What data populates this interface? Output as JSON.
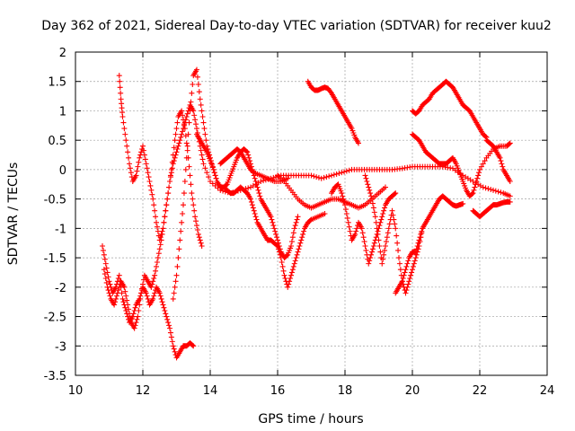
{
  "chart_data": {
    "type": "scatter",
    "title": "Day 362 of 2021, Sidereal Day-to-day VTEC variation (SDTVAR) for receiver kuu2",
    "xlabel": "GPS time / hours",
    "ylabel": "SDTVAR / TECUs",
    "xlim": [
      10,
      24
    ],
    "ylim": [
      -3.5,
      2
    ],
    "xticks": [
      10,
      12,
      14,
      16,
      18,
      20,
      22,
      24
    ],
    "yticks": [
      2,
      1.5,
      1,
      0.5,
      0,
      -0.5,
      -1,
      -1.5,
      -2,
      -2.5,
      -3,
      -3.5
    ],
    "xtick_labels": [
      "10",
      "12",
      "14",
      "16",
      "18",
      "20",
      "22",
      "24"
    ],
    "ytick_labels": [
      "2",
      "1.5",
      "1",
      "0.5",
      "0",
      "-0.5",
      "-1",
      "-1.5",
      "-2",
      "-2.5",
      "-3",
      "-3.5"
    ],
    "grid": true,
    "marker": "+",
    "color": "#ff0000",
    "series": [
      {
        "name": "s1",
        "x": [
          11.3,
          11.35,
          11.4,
          11.5,
          11.6,
          11.7,
          11.8,
          11.9,
          12.0,
          12.1,
          12.2,
          12.3,
          12.4,
          12.5,
          12.6,
          12.7,
          12.8,
          12.9,
          13.0,
          13.1,
          13.2,
          13.3,
          13.4,
          13.5,
          13.6,
          13.7,
          13.8,
          14.0,
          14.3,
          14.6,
          14.9,
          15.2,
          15.5,
          15.8,
          16.1,
          16.4,
          16.7,
          17.0,
          17.3,
          17.6,
          17.9,
          18.2,
          18.5,
          18.8,
          19.1,
          19.4,
          19.7,
          20.0,
          20.3,
          20.6,
          20.9,
          21.2,
          21.5,
          21.8,
          22.1,
          22.4,
          22.7,
          22.9
        ],
        "y": [
          1.6,
          1.2,
          0.9,
          0.5,
          0.1,
          -0.2,
          -0.1,
          0.2,
          0.4,
          0.1,
          -0.2,
          -0.5,
          -0.9,
          -1.2,
          -1.0,
          -0.6,
          -0.2,
          0.1,
          0.3,
          0.5,
          0.7,
          0.9,
          1.1,
          1.0,
          0.7,
          0.4,
          0.1,
          -0.2,
          -0.35,
          -0.4,
          -0.35,
          -0.3,
          -0.2,
          -0.15,
          -0.1,
          -0.1,
          -0.1,
          -0.1,
          -0.15,
          -0.1,
          -0.05,
          0.0,
          0.0,
          0.0,
          0.0,
          0.0,
          0.02,
          0.05,
          0.05,
          0.05,
          0.05,
          0.02,
          -0.1,
          -0.2,
          -0.3,
          -0.35,
          -0.4,
          -0.45
        ]
      },
      {
        "name": "s2",
        "x": [
          10.8,
          10.9,
          11.0,
          11.1,
          11.2,
          11.3,
          11.4,
          11.5,
          11.6,
          11.7,
          11.8,
          11.9,
          12.0,
          12.1,
          12.2,
          12.3,
          12.4,
          12.5,
          12.6,
          12.7,
          12.8,
          12.9,
          13.0,
          13.1,
          13.2,
          13.3,
          13.4,
          13.5
        ],
        "y": [
          -1.3,
          -1.6,
          -1.9,
          -2.1,
          -2.0,
          -1.8,
          -2.2,
          -2.4,
          -2.6,
          -2.5,
          -2.3,
          -2.2,
          -2.0,
          -2.1,
          -2.3,
          -2.2,
          -2.0,
          -2.1,
          -2.3,
          -2.5,
          -2.7,
          -3.0,
          -3.2,
          -3.1,
          -3.0,
          -3.0,
          -2.95,
          -3.0
        ]
      },
      {
        "name": "s3",
        "x": [
          10.85,
          10.95,
          11.05,
          11.15,
          11.25,
          11.35,
          11.45,
          11.55,
          11.65,
          11.75,
          11.85,
          11.95,
          12.05,
          12.15,
          12.25,
          12.35,
          12.45,
          12.55,
          12.65,
          12.75,
          12.85,
          12.95,
          13.05,
          13.15,
          13.25,
          13.35,
          13.45,
          13.55,
          13.65,
          13.75
        ],
        "y": [
          -1.7,
          -2.0,
          -2.2,
          -2.3,
          -2.1,
          -1.9,
          -2.0,
          -2.3,
          -2.6,
          -2.7,
          -2.5,
          -2.1,
          -1.8,
          -1.9,
          -2.0,
          -1.8,
          -1.5,
          -1.2,
          -0.8,
          -0.4,
          0.0,
          0.5,
          0.9,
          1.0,
          0.7,
          0.2,
          -0.4,
          -0.8,
          -1.1,
          -1.3
        ]
      },
      {
        "name": "s4",
        "x": [
          12.9,
          13.0,
          13.1,
          13.2,
          13.3,
          13.4,
          13.5,
          13.6,
          13.7,
          13.8,
          13.9,
          14.0,
          14.1,
          14.2,
          14.3,
          14.4,
          14.5,
          14.6,
          14.7,
          14.8,
          14.9,
          15.0,
          15.1,
          15.2,
          15.3,
          15.4,
          15.5,
          15.6,
          15.7,
          15.8,
          15.9,
          16.0,
          16.1,
          16.2,
          16.3,
          16.4,
          16.5,
          16.6
        ],
        "y": [
          -2.2,
          -1.8,
          -1.2,
          -0.6,
          0.2,
          1.0,
          1.6,
          1.7,
          1.2,
          0.8,
          0.4,
          0.2,
          0.0,
          -0.2,
          -0.3,
          -0.3,
          -0.25,
          -0.1,
          0.05,
          0.2,
          0.3,
          0.35,
          0.3,
          0.1,
          -0.1,
          -0.3,
          -0.5,
          -0.6,
          -0.7,
          -0.8,
          -1.0,
          -1.2,
          -1.4,
          -1.5,
          -1.45,
          -1.3,
          -1.0,
          -0.8
        ]
      },
      {
        "name": "s5",
        "x": [
          13.6,
          13.7,
          13.8,
          13.9,
          14.0,
          14.1,
          14.2,
          14.3,
          14.4,
          14.5,
          14.6,
          14.7,
          14.8,
          14.9,
          15.0,
          15.1,
          15.2,
          15.3,
          15.4,
          15.5,
          15.6,
          15.7,
          15.8,
          15.9,
          16.0,
          16.1,
          16.2,
          16.3,
          16.4,
          16.5,
          16.6,
          16.7,
          16.8,
          16.9,
          17.0,
          17.2,
          17.4
        ],
        "y": [
          0.6,
          0.5,
          0.4,
          0.3,
          0.15,
          0.0,
          -0.2,
          -0.3,
          -0.3,
          -0.35,
          -0.4,
          -0.4,
          -0.35,
          -0.3,
          -0.35,
          -0.4,
          -0.5,
          -0.7,
          -0.9,
          -1.0,
          -1.1,
          -1.2,
          -1.2,
          -1.25,
          -1.3,
          -1.5,
          -1.8,
          -2.0,
          -1.8,
          -1.6,
          -1.4,
          -1.2,
          -1.0,
          -0.9,
          -0.85,
          -0.8,
          -0.75
        ]
      },
      {
        "name": "s6",
        "x": [
          16.9,
          17.0,
          17.1,
          17.2,
          17.3,
          17.4,
          17.5,
          17.6,
          17.7,
          17.8,
          17.9,
          18.0,
          18.1,
          18.2,
          18.3,
          18.4
        ],
        "y": [
          1.5,
          1.4,
          1.35,
          1.35,
          1.38,
          1.4,
          1.38,
          1.3,
          1.2,
          1.1,
          1.0,
          0.9,
          0.8,
          0.7,
          0.55,
          0.45
        ]
      },
      {
        "name": "s7",
        "x": [
          16.0,
          16.2,
          16.4,
          16.6,
          16.8,
          17.0,
          17.2,
          17.4,
          17.6,
          17.8,
          18.0,
          18.2,
          18.4,
          18.6,
          18.8,
          19.0,
          19.2
        ],
        "y": [
          -0.1,
          -0.2,
          -0.35,
          -0.5,
          -0.6,
          -0.65,
          -0.6,
          -0.55,
          -0.5,
          -0.5,
          -0.55,
          -0.6,
          -0.65,
          -0.6,
          -0.5,
          -0.4,
          -0.3
        ]
      },
      {
        "name": "s8",
        "x": [
          17.6,
          17.7,
          17.8,
          17.9,
          18.0,
          18.1,
          18.2,
          18.3,
          18.4,
          18.5,
          18.6,
          18.7,
          18.8,
          18.9,
          19.0,
          19.1,
          19.2,
          19.3,
          19.4,
          19.5
        ],
        "y": [
          -0.4,
          -0.3,
          -0.25,
          -0.4,
          -0.6,
          -0.9,
          -1.2,
          -1.1,
          -0.9,
          -1.0,
          -1.3,
          -1.6,
          -1.4,
          -1.2,
          -1.0,
          -0.8,
          -0.6,
          -0.5,
          -0.45,
          -0.4
        ]
      },
      {
        "name": "s9",
        "x": [
          18.6,
          18.7,
          18.8,
          18.9,
          19.0,
          19.1,
          19.2,
          19.3,
          19.4,
          19.5,
          19.6,
          19.7,
          19.8,
          19.9,
          20.0,
          20.1,
          20.2,
          20.3
        ],
        "y": [
          -0.1,
          -0.3,
          -0.5,
          -0.8,
          -1.2,
          -1.6,
          -1.3,
          -1.0,
          -0.7,
          -1.0,
          -1.5,
          -1.9,
          -2.1,
          -1.9,
          -1.7,
          -1.5,
          -1.3,
          -1.0
        ]
      },
      {
        "name": "s10",
        "x": [
          19.5,
          19.6,
          19.7,
          19.8,
          19.9,
          20.0,
          20.1,
          20.2,
          20.3,
          20.4,
          20.5,
          20.6,
          20.7,
          20.8,
          20.9,
          21.0,
          21.1,
          21.2,
          21.3,
          21.4,
          21.5
        ],
        "y": [
          -2.1,
          -2.0,
          -1.9,
          -1.7,
          -1.5,
          -1.4,
          -1.4,
          -1.2,
          -1.0,
          -0.9,
          -0.8,
          -0.7,
          -0.6,
          -0.5,
          -0.45,
          -0.5,
          -0.55,
          -0.6,
          -0.62,
          -0.6,
          -0.58
        ]
      },
      {
        "name": "s11",
        "x": [
          20.0,
          20.1,
          20.2,
          20.3,
          20.4,
          20.5,
          20.6,
          20.7,
          20.8,
          20.9,
          21.0,
          21.1,
          21.2,
          21.3,
          21.4,
          21.5,
          21.6,
          21.7,
          21.8,
          21.9,
          22.0,
          22.1,
          22.2
        ],
        "y": [
          1.0,
          0.95,
          1.0,
          1.1,
          1.15,
          1.2,
          1.3,
          1.35,
          1.4,
          1.45,
          1.5,
          1.45,
          1.4,
          1.3,
          1.2,
          1.1,
          1.05,
          1.0,
          0.9,
          0.8,
          0.7,
          0.6,
          0.55
        ]
      },
      {
        "name": "s12",
        "x": [
          20.0,
          20.1,
          20.2,
          20.3,
          20.4,
          20.5,
          20.6,
          20.7,
          20.8,
          20.9,
          21.0,
          21.1,
          21.2,
          21.3,
          21.4,
          21.5,
          21.6,
          21.7,
          21.8,
          21.9,
          22.0,
          22.2,
          22.4,
          22.6,
          22.8,
          22.9
        ],
        "y": [
          0.6,
          0.55,
          0.5,
          0.4,
          0.3,
          0.25,
          0.2,
          0.15,
          0.1,
          0.1,
          0.1,
          0.15,
          0.2,
          0.1,
          -0.05,
          -0.2,
          -0.35,
          -0.45,
          -0.4,
          -0.2,
          0.0,
          0.2,
          0.35,
          0.4,
          0.4,
          0.45
        ]
      },
      {
        "name": "s13",
        "x": [
          21.8,
          21.9,
          22.0,
          22.1,
          22.2,
          22.3,
          22.4,
          22.5,
          22.6,
          22.7,
          22.8,
          22.9
        ],
        "y": [
          -0.7,
          -0.75,
          -0.8,
          -0.75,
          -0.7,
          -0.65,
          -0.6,
          -0.6,
          -0.58,
          -0.56,
          -0.55,
          -0.55
        ]
      },
      {
        "name": "s14",
        "x": [
          22.2,
          22.3,
          22.4,
          22.5,
          22.6,
          22.7,
          22.8,
          22.9
        ],
        "y": [
          0.5,
          0.45,
          0.4,
          0.3,
          0.2,
          0.0,
          -0.1,
          -0.2
        ]
      },
      {
        "name": "s15",
        "x": [
          14.3,
          14.4,
          14.5,
          14.6,
          14.7,
          14.8,
          14.9,
          15.0,
          15.1,
          15.2,
          15.3,
          15.5,
          15.7,
          15.9,
          16.1,
          16.3
        ],
        "y": [
          0.1,
          0.15,
          0.2,
          0.25,
          0.3,
          0.35,
          0.3,
          0.2,
          0.1,
          0.0,
          -0.05,
          -0.1,
          -0.15,
          -0.2,
          -0.2,
          -0.15
        ]
      }
    ]
  }
}
